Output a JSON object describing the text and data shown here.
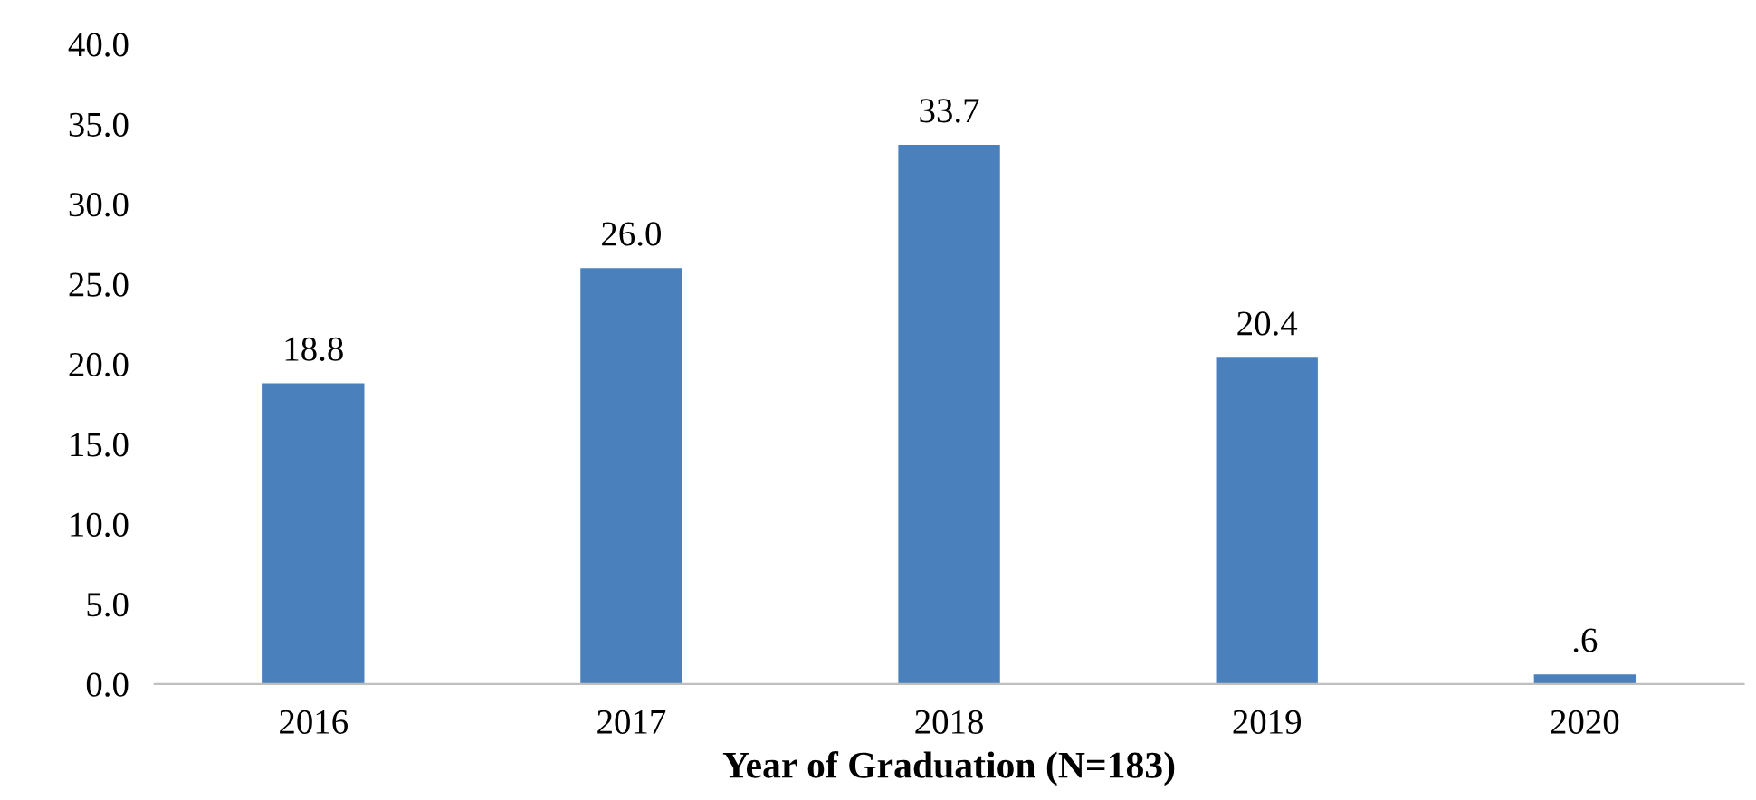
{
  "chart_data": {
    "type": "bar",
    "xlabel": "Year of Graduation (N=183)",
    "categories": [
      "2016",
      "2017",
      "2018",
      "2019",
      "2020"
    ],
    "values": [
      18.8,
      26.0,
      33.7,
      20.4,
      0.6
    ],
    "value_labels": [
      "18.8",
      "26.0",
      "33.7",
      "20.4",
      ".6"
    ],
    "color": "#4a81bd",
    "ylim": [
      0,
      40
    ],
    "yticks": [
      {
        "value": 0,
        "label": "0.0"
      },
      {
        "value": 5,
        "label": "5.0"
      },
      {
        "value": 10,
        "label": "10.0"
      },
      {
        "value": 15,
        "label": "15.0"
      },
      {
        "value": 20,
        "label": "20.0"
      },
      {
        "value": 25,
        "label": "25.0"
      },
      {
        "value": 30,
        "label": "30.0"
      },
      {
        "value": 35,
        "label": "35.0"
      },
      {
        "value": 40,
        "label": "40.0"
      }
    ],
    "grid": false,
    "legend": false
  }
}
